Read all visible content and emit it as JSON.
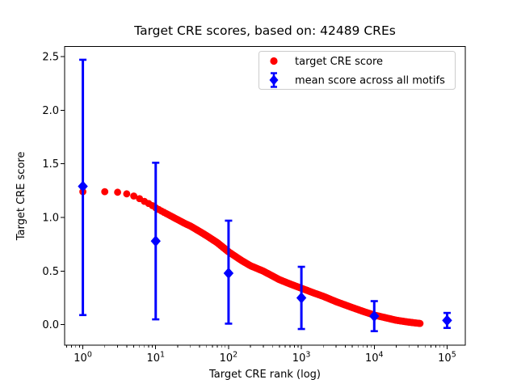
{
  "chart_data": {
    "type": "scatter",
    "title": "Target CRE scores, based on: 42489 CREs",
    "xlabel": "Target CRE rank (log)",
    "ylabel": "Target CRE score",
    "xscale": "log",
    "xlim": [
      0.562,
      177828
    ],
    "ylim": [
      -0.192,
      2.593
    ],
    "xticks": [
      1,
      10,
      100,
      1000,
      10000,
      100000
    ],
    "xtick_exponents": [
      0,
      1,
      2,
      3,
      4,
      5
    ],
    "yticks": [
      0.0,
      0.5,
      1.0,
      1.5,
      2.0,
      2.5
    ],
    "grid": false,
    "legend": {
      "position": "upper right",
      "entries": [
        {
          "label": "target CRE score",
          "marker": "circle",
          "color": "#ff0000"
        },
        {
          "label": "mean score across all motifs",
          "marker": "diamond-errorbar",
          "color": "#0000ff"
        }
      ]
    },
    "series": [
      {
        "name": "target CRE score",
        "color": "#ff0000",
        "marker": "circle",
        "n_points_total": 42489,
        "max_rank": 42489,
        "curve_samples": [
          [
            1,
            1.24
          ],
          [
            2,
            1.24
          ],
          [
            3,
            1.235
          ],
          [
            4,
            1.22
          ],
          [
            5,
            1.2
          ],
          [
            6,
            1.175
          ],
          [
            7,
            1.15
          ],
          [
            8,
            1.13
          ],
          [
            9,
            1.11
          ],
          [
            10,
            1.09
          ],
          [
            12,
            1.06
          ],
          [
            15,
            1.025
          ],
          [
            20,
            0.98
          ],
          [
            25,
            0.945
          ],
          [
            30,
            0.92
          ],
          [
            40,
            0.87
          ],
          [
            50,
            0.83
          ],
          [
            70,
            0.765
          ],
          [
            100,
            0.68
          ],
          [
            150,
            0.6
          ],
          [
            200,
            0.55
          ],
          [
            300,
            0.5
          ],
          [
            500,
            0.42
          ],
          [
            700,
            0.38
          ],
          [
            1000,
            0.34
          ],
          [
            1500,
            0.295
          ],
          [
            2000,
            0.265
          ],
          [
            3000,
            0.215
          ],
          [
            5000,
            0.16
          ],
          [
            7000,
            0.125
          ],
          [
            10000,
            0.09
          ],
          [
            15000,
            0.062
          ],
          [
            20000,
            0.042
          ],
          [
            30000,
            0.024
          ],
          [
            42489,
            0.012
          ]
        ]
      },
      {
        "name": "mean score across all motifs",
        "color": "#0000ff",
        "marker": "diamond",
        "points": [
          {
            "rank": 1,
            "mean": 1.29,
            "err_lo": 0.09,
            "err_hi": 2.47
          },
          {
            "rank": 10,
            "mean": 0.78,
            "err_lo": 0.05,
            "err_hi": 1.51
          },
          {
            "rank": 100,
            "mean": 0.48,
            "err_lo": 0.01,
            "err_hi": 0.97
          },
          {
            "rank": 1000,
            "mean": 0.25,
            "err_lo": -0.04,
            "err_hi": 0.54
          },
          {
            "rank": 10000,
            "mean": 0.08,
            "err_lo": -0.06,
            "err_hi": 0.22
          },
          {
            "rank": 100000,
            "mean": 0.04,
            "err_lo": -0.03,
            "err_hi": 0.11
          }
        ]
      }
    ]
  }
}
